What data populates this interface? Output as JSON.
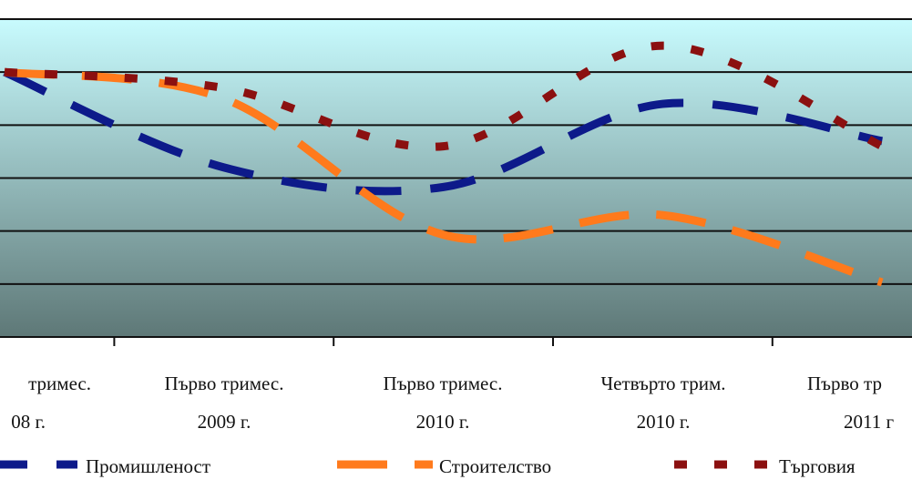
{
  "chart_data": {
    "type": "line",
    "title": "",
    "xlabel": "",
    "ylabel": "",
    "categories": [
      [
        "тримес.",
        "08 г."
      ],
      [
        "Първо тримес.",
        "2009 г."
      ],
      [
        "Първо тримес.",
        "2010 г."
      ],
      [
        "Четвърто трим.",
        "2010 г."
      ],
      [
        "Първо тр",
        "2011 г"
      ]
    ],
    "ylim": [
      0,
      6
    ],
    "grid": true,
    "legend_placement": "bottom",
    "series": [
      {
        "name": "Промишленост",
        "color": "#0d1a8a",
        "style": "long-dash",
        "values": [
          5.0,
          3.2,
          2.83,
          4.4,
          3.7
        ]
      },
      {
        "name": "Строителство",
        "color": "#ff7a1c",
        "style": "dash",
        "values": [
          5.0,
          4.5,
          1.93,
          2.3,
          1.03
        ]
      },
      {
        "name": "Търговия",
        "color": "#8b1010",
        "style": "square-dot",
        "values": [
          5.0,
          4.7,
          3.6,
          5.5,
          3.6
        ]
      }
    ],
    "background_gradient": [
      "#c8fbfe",
      "#5e7877"
    ]
  }
}
